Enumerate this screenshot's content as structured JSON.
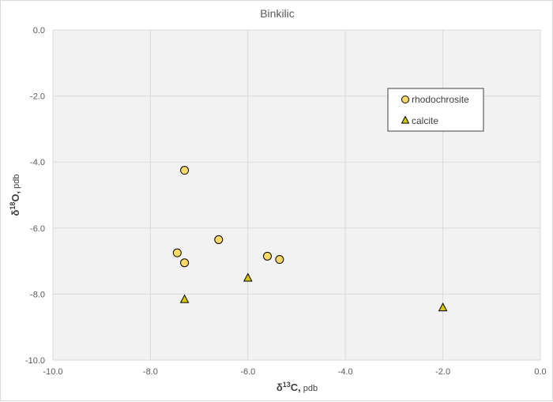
{
  "chart_data": {
    "type": "scatter",
    "title": "Binkilic",
    "xlabel": {
      "delta": "δ",
      "sup": "13",
      "element": "C,",
      "unit": "pdb"
    },
    "ylabel": {
      "delta": "δ",
      "sup": "18",
      "element": "O,",
      "unit": "pdb"
    },
    "xlim": [
      -10.0,
      0.0
    ],
    "ylim": [
      -10.0,
      0.0
    ],
    "x_ticks": [
      "-10.0",
      "-8.0",
      "-6.0",
      "-4.0",
      "-2.0",
      "0.0"
    ],
    "y_ticks": [
      "0.0",
      "-2.0",
      "-4.0",
      "-6.0",
      "-8.0",
      "-10.0"
    ],
    "grid": true,
    "legend_position": "top-right",
    "series": [
      {
        "name": "rhodochrosite",
        "marker": "circle",
        "color": "#ffd966",
        "points": [
          {
            "x": -7.3,
            "y": -4.25
          },
          {
            "x": -6.6,
            "y": -6.35
          },
          {
            "x": -7.45,
            "y": -6.75
          },
          {
            "x": -7.3,
            "y": -7.05
          },
          {
            "x": -5.6,
            "y": -6.85
          },
          {
            "x": -5.35,
            "y": -6.95
          }
        ]
      },
      {
        "name": "calcite",
        "marker": "triangle",
        "color": "#d4c800",
        "points": [
          {
            "x": -7.3,
            "y": -8.15
          },
          {
            "x": -6.0,
            "y": -7.5
          },
          {
            "x": -2.0,
            "y": -8.4
          }
        ]
      }
    ]
  }
}
